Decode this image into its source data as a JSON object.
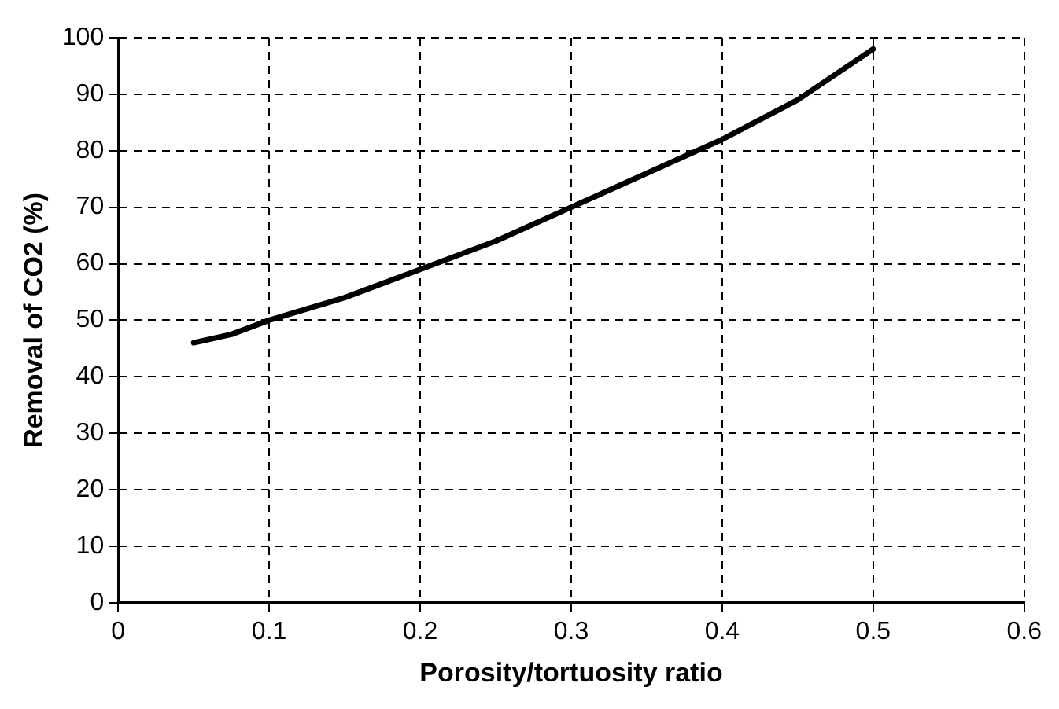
{
  "chart_data": {
    "type": "line",
    "xlabel": "Porosity/tortuosity ratio",
    "ylabel": "Removal of CO2 (%)",
    "x": [
      0.05,
      0.075,
      0.1,
      0.15,
      0.2,
      0.25,
      0.3,
      0.35,
      0.4,
      0.45,
      0.5
    ],
    "series": [
      {
        "color": "#000000",
        "values": [
          46,
          47.5,
          50,
          54,
          59,
          64,
          70,
          76,
          82,
          89,
          98
        ]
      }
    ],
    "xlim": [
      0,
      0.6
    ],
    "xticks": [
      0,
      0.1,
      0.2,
      0.3,
      0.4,
      0.5,
      0.6
    ],
    "ylim": [
      0,
      100
    ],
    "yticks": [
      0,
      10,
      20,
      30,
      40,
      50,
      60,
      70,
      80,
      90,
      100
    ],
    "grid": true,
    "marker": "none",
    "line_style": "solid"
  }
}
